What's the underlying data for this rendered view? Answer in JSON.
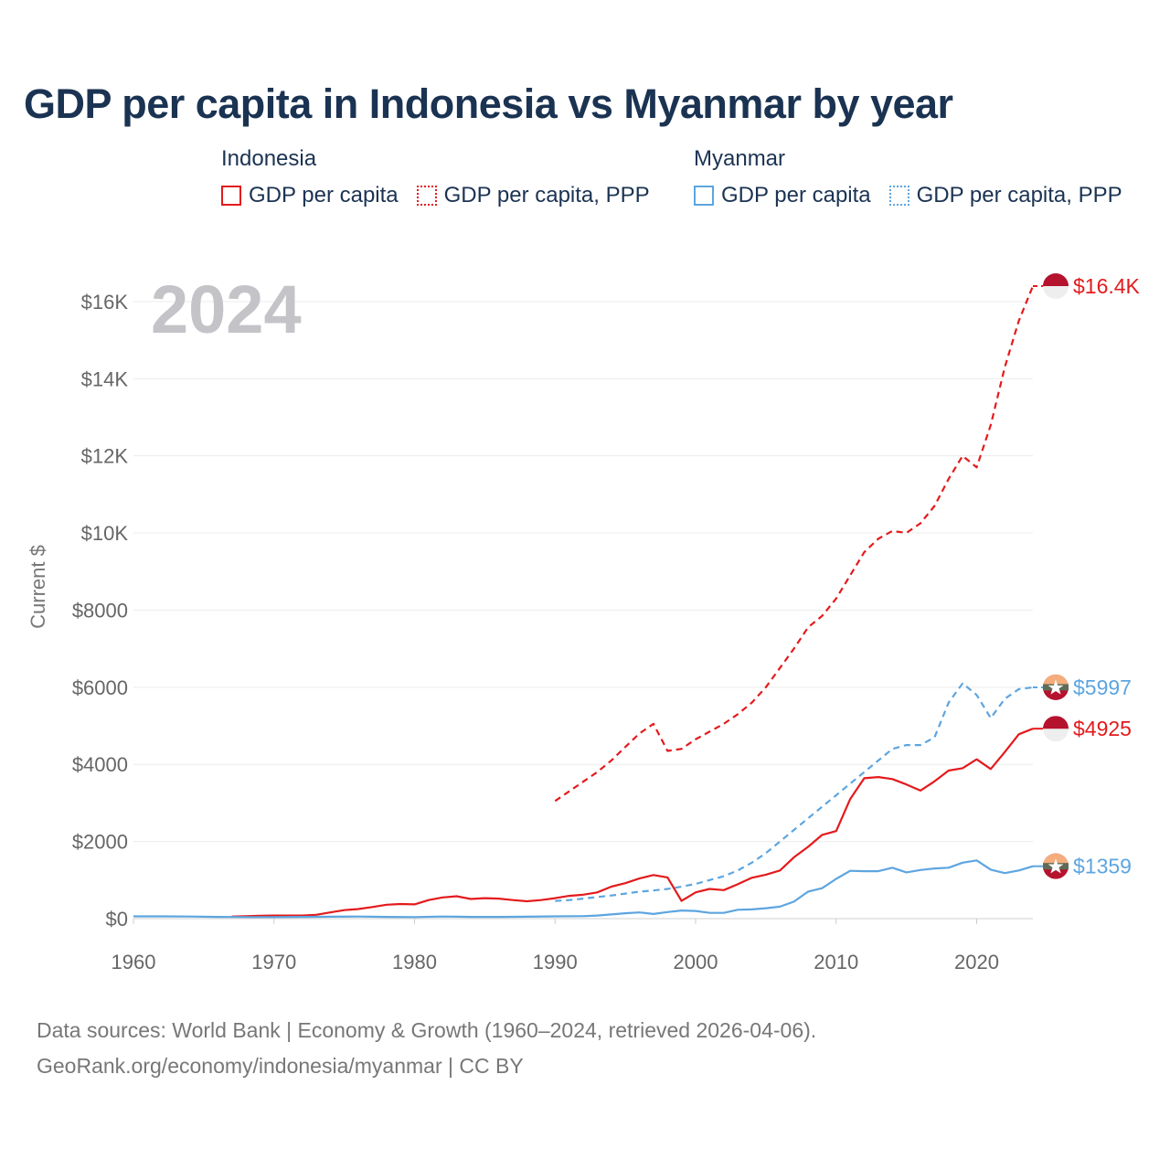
{
  "title": "GDP per capita in Indonesia vs Myanmar by year",
  "year_label": "2024",
  "legend": {
    "groups": [
      {
        "name": "Indonesia",
        "color": "#e41a1c",
        "items": [
          {
            "label": "GDP per capita",
            "style": "solid"
          },
          {
            "label": "GDP per capita, PPP",
            "style": "dotted"
          }
        ]
      },
      {
        "name": "Myanmar",
        "color": "#5da5e0",
        "items": [
          {
            "label": "GDP per capita",
            "style": "solid"
          },
          {
            "label": "GDP per capita, PPP",
            "style": "dotted"
          }
        ]
      }
    ]
  },
  "sources": {
    "line1": "Data sources: World Bank | Economy & Growth (1960–2024, retrieved 2026-04-06).",
    "line2": "GeoRank.org/economy/indonesia/myanmar | CC BY"
  },
  "chart_data": {
    "type": "line",
    "title": "GDP per capita in Indonesia vs Myanmar by year",
    "xlabel": "",
    "ylabel": "Current $",
    "xlim": [
      1960,
      2024
    ],
    "ylim": [
      0,
      16400
    ],
    "x_ticks": [
      1960,
      1970,
      1980,
      1990,
      2000,
      2010,
      2020
    ],
    "y_ticks": [
      {
        "value": 0,
        "label": "$0"
      },
      {
        "value": 2000,
        "label": "$2000"
      },
      {
        "value": 4000,
        "label": "$4000"
      },
      {
        "value": 6000,
        "label": "$6000"
      },
      {
        "value": 8000,
        "label": "$8000"
      },
      {
        "value": 10000,
        "label": "$10K"
      },
      {
        "value": 12000,
        "label": "$12K"
      },
      {
        "value": 14000,
        "label": "$14K"
      },
      {
        "value": 16000,
        "label": "$16K"
      }
    ],
    "grid": true,
    "series": [
      {
        "name": "Indonesia GDP per capita",
        "country": "Indonesia",
        "color": "#e41a1c",
        "dash": false,
        "end_label": "$4925",
        "x": [
          1967,
          1968,
          1969,
          1970,
          1971,
          1972,
          1973,
          1974,
          1975,
          1976,
          1977,
          1978,
          1979,
          1980,
          1981,
          1982,
          1983,
          1984,
          1985,
          1986,
          1987,
          1988,
          1989,
          1990,
          1991,
          1992,
          1993,
          1994,
          1995,
          1996,
          1997,
          1998,
          1999,
          2000,
          2001,
          2002,
          2003,
          2004,
          2005,
          2006,
          2007,
          2008,
          2009,
          2010,
          2011,
          2012,
          2013,
          2014,
          2015,
          2016,
          2017,
          2018,
          2019,
          2020,
          2021,
          2022,
          2023,
          2024
        ],
        "y": [
          55,
          65,
          75,
          80,
          80,
          80,
          100,
          160,
          220,
          250,
          300,
          360,
          380,
          370,
          480,
          550,
          580,
          510,
          530,
          520,
          480,
          450,
          480,
          530,
          590,
          620,
          680,
          830,
          920,
          1040,
          1130,
          1070,
          460,
          680,
          770,
          740,
          890,
          1060,
          1140,
          1250,
          1590,
          1860,
          2170,
          2270,
          3100,
          3640,
          3670,
          3620,
          3480,
          3320,
          3560,
          3840,
          3900,
          4130,
          3880,
          4320,
          4780,
          4925
        ]
      },
      {
        "name": "Indonesia GDP per capita, PPP",
        "country": "Indonesia",
        "color": "#e41a1c",
        "dash": true,
        "end_label": "$16.4K",
        "x": [
          1990,
          1991,
          1992,
          1993,
          1994,
          1995,
          1996,
          1997,
          1998,
          1999,
          2000,
          2001,
          2002,
          2003,
          2004,
          2005,
          2006,
          2007,
          2008,
          2009,
          2010,
          2011,
          2012,
          2013,
          2014,
          2015,
          2016,
          2017,
          2018,
          2019,
          2020,
          2021,
          2022,
          2023,
          2024
        ],
        "y": [
          3050,
          3300,
          3550,
          3800,
          4100,
          4450,
          4800,
          5050,
          4350,
          4400,
          4650,
          4850,
          5050,
          5300,
          5600,
          6000,
          6500,
          7000,
          7550,
          7850,
          8300,
          8900,
          9500,
          9850,
          10050,
          10000,
          10250,
          10700,
          11400,
          12000,
          11700,
          12800,
          14300,
          15500,
          16400
        ]
      },
      {
        "name": "Myanmar GDP per capita",
        "country": "Myanmar",
        "color": "#5da5e0",
        "dash": false,
        "end_label": "$1359",
        "x": [
          1960,
          1962,
          1964,
          1966,
          1968,
          1970,
          1972,
          1974,
          1976,
          1978,
          1980,
          1982,
          1984,
          1986,
          1988,
          1990,
          1992,
          1993,
          1994,
          1995,
          1996,
          1997,
          1998,
          1999,
          2000,
          2001,
          2002,
          2003,
          2004,
          2005,
          2006,
          2007,
          2008,
          2009,
          2010,
          2011,
          2012,
          2013,
          2014,
          2015,
          2016,
          2017,
          2018,
          2019,
          2020,
          2021,
          2022,
          2023,
          2024
        ],
        "y": [
          60,
          60,
          55,
          45,
          40,
          40,
          45,
          50,
          55,
          45,
          40,
          55,
          45,
          45,
          50,
          60,
          65,
          80,
          110,
          140,
          160,
          120,
          170,
          210,
          200,
          150,
          150,
          230,
          240,
          270,
          310,
          440,
          700,
          790,
          1030,
          1240,
          1230,
          1230,
          1320,
          1200,
          1260,
          1300,
          1320,
          1450,
          1510,
          1270,
          1180,
          1250,
          1359
        ]
      },
      {
        "name": "Myanmar GDP per capita, PPP",
        "country": "Myanmar",
        "color": "#5da5e0",
        "dash": true,
        "end_label": "$5997",
        "x": [
          1990,
          1991,
          1992,
          1993,
          1994,
          1995,
          1996,
          1997,
          1998,
          1999,
          2000,
          2001,
          2002,
          2003,
          2004,
          2005,
          2006,
          2007,
          2008,
          2009,
          2010,
          2011,
          2012,
          2013,
          2014,
          2015,
          2016,
          2017,
          2018,
          2019,
          2020,
          2021,
          2022,
          2023,
          2024
        ],
        "y": [
          460,
          480,
          520,
          560,
          600,
          650,
          700,
          730,
          770,
          830,
          900,
          1000,
          1100,
          1250,
          1450,
          1700,
          2000,
          2300,
          2600,
          2900,
          3200,
          3500,
          3800,
          4100,
          4400,
          4500,
          4500,
          4700,
          5600,
          6100,
          5800,
          5200,
          5700,
          5950,
          5997
        ]
      }
    ]
  }
}
